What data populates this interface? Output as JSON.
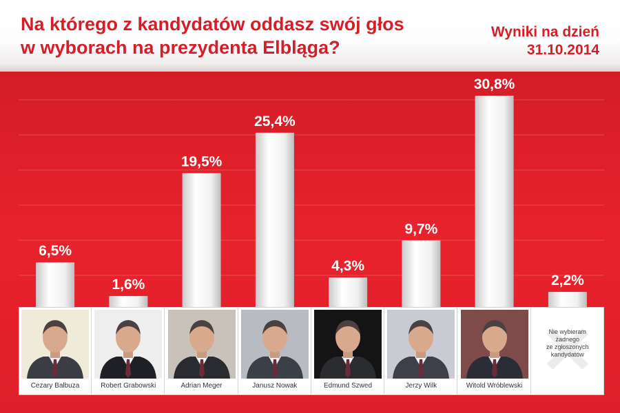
{
  "header": {
    "title_line1": "Na którego z kandydatów oddasz swój głos",
    "title_line2": "w wyborach na prezydenta Elbląga?",
    "date_label": "Wyniki na dzień",
    "date_value": "31.10.2014"
  },
  "colors": {
    "background": "#e8222c",
    "title": "#d41f29",
    "bar": "#f2f2f2",
    "label": "#ffffff"
  },
  "chart_data": {
    "type": "bar",
    "categories": [
      "Cezary Balbuza",
      "Robert Grabowski",
      "Adrian Meger",
      "Janusz Nowak",
      "Edmund Szwed",
      "Jerzy Wilk",
      "Witold Wróblewski",
      "Nie wybieram żadnego ze zgłoszonych kandydatów"
    ],
    "values": [
      6.5,
      1.6,
      19.5,
      25.4,
      4.3,
      9.7,
      30.8,
      2.2
    ],
    "value_labels": [
      "6,5%",
      "1,6%",
      "19,5%",
      "25,4%",
      "4,3%",
      "9,7%",
      "30,8%",
      "2,2%"
    ],
    "unit": "%",
    "ylim": [
      0,
      30.8
    ],
    "grid": true,
    "legend": "none",
    "candidates": [
      {
        "name": "Cezary Balbuza",
        "photo_bg": "#f0ead8",
        "suit": "#3a3d44"
      },
      {
        "name": "Robert Grabowski",
        "photo_bg": "#eeeeee",
        "suit": "#1f2025"
      },
      {
        "name": "Adrian Meger",
        "photo_bg": "#c9c2bb",
        "suit": "#2a2b30"
      },
      {
        "name": "Janusz Nowak",
        "photo_bg": "#b8bcc2",
        "suit": "#3b3f47"
      },
      {
        "name": "Edmund Szwed",
        "photo_bg": "#141414",
        "suit": "#2b2c30"
      },
      {
        "name": "Jerzy Wilk",
        "photo_bg": "#c8ccd2",
        "suit": "#3d4048"
      },
      {
        "name": "Witold Wróblewski",
        "photo_bg": "#7e4a4a",
        "suit": "#2a2d36"
      }
    ],
    "none_option": {
      "text_line1": "Nie wybieram",
      "text_line2": "żadnego",
      "text_line3": "ze zgłoszonych",
      "text_line4": "kandydatów",
      "icon": "x-icon"
    }
  }
}
